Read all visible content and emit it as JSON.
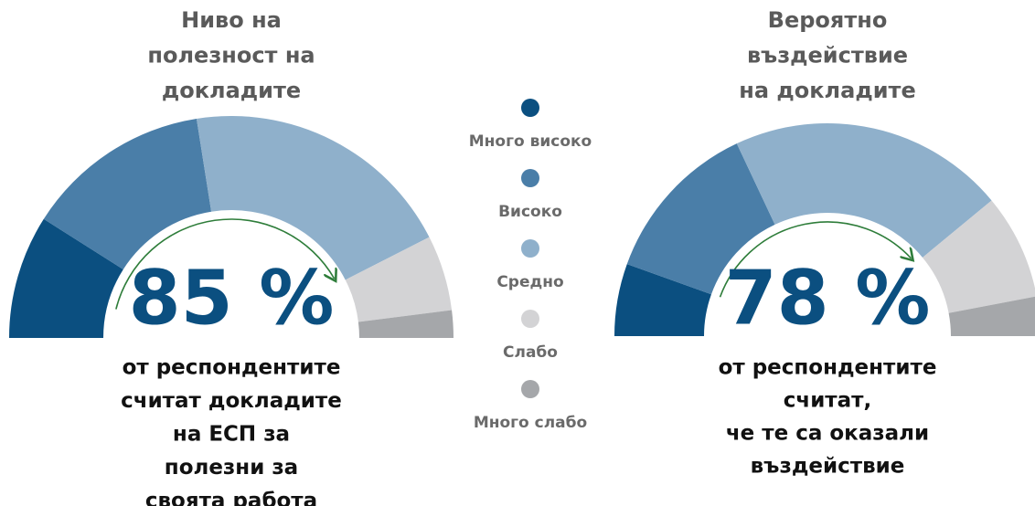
{
  "chart_data": [
    {
      "type": "gauge",
      "title": [
        "Ниво на",
        "полезност на",
        "докладите"
      ],
      "values": [
        18,
        27,
        40,
        11,
        4
      ],
      "headline": "85 %",
      "subtitle": [
        "от респондентите",
        "считат докладите",
        "на ЕСП за",
        "полезни за",
        "своята работа"
      ]
    },
    {
      "type": "gauge",
      "title": [
        "Вероятно",
        "въздействие",
        "на докладите"
      ],
      "values": [
        11,
        25,
        42,
        16,
        6
      ],
      "headline": "78 %",
      "subtitle": [
        "от респондентите",
        "считат,",
        "че те са оказали",
        "въздействие"
      ]
    }
  ],
  "legend": {
    "labels": [
      "Много високо",
      "Високо",
      "Средно",
      "Слабо",
      "Много слабо"
    ],
    "colors": [
      "#0b4f80",
      "#4a7ea8",
      "#8fb0cb",
      "#d3d3d5",
      "#a5a7aa"
    ]
  }
}
